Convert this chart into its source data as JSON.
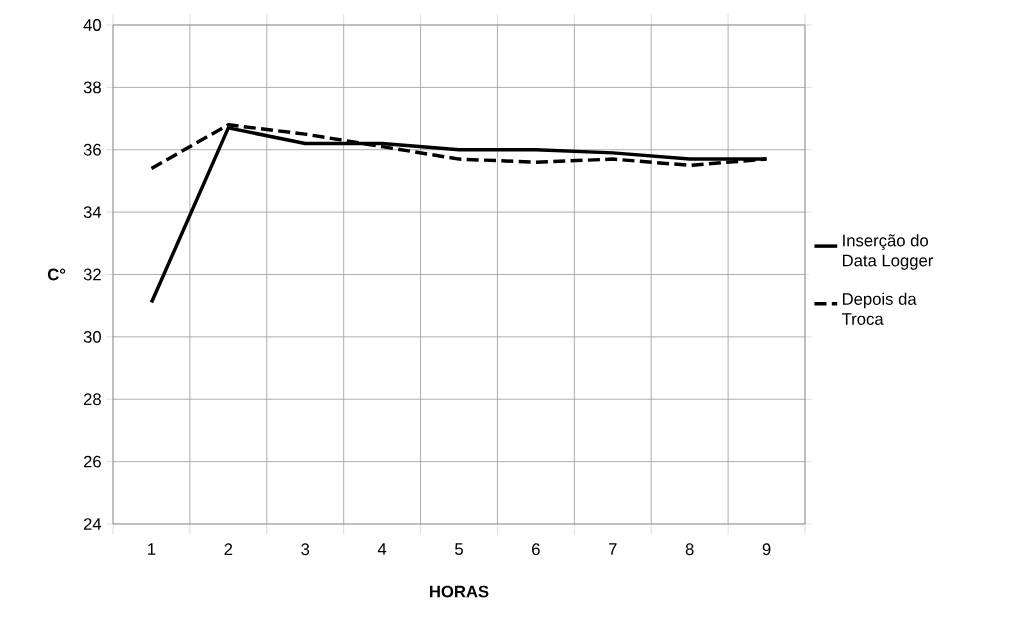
{
  "chart_data": {
    "type": "line",
    "xlabel": "HORAS",
    "ylabel": "C°",
    "categories": [
      "1",
      "2",
      "3",
      "4",
      "5",
      "6",
      "7",
      "8",
      "9"
    ],
    "series": [
      {
        "name": "Inserção do Data Logger",
        "color": "#000000",
        "line_style": "solid",
        "values": [
          31.1,
          36.7,
          36.2,
          36.2,
          36.0,
          36.0,
          35.9,
          35.7,
          35.7
        ]
      },
      {
        "name": "Depois da Troca",
        "color": "#000000",
        "line_style": "dashed",
        "values": [
          35.4,
          36.8,
          36.5,
          36.1,
          35.7,
          35.6,
          35.7,
          35.5,
          35.7
        ]
      }
    ],
    "ylim": [
      24,
      40
    ],
    "yticks": [
      24,
      26,
      28,
      30,
      32,
      34,
      36,
      38,
      40
    ],
    "grid": true,
    "legend": "right"
  }
}
